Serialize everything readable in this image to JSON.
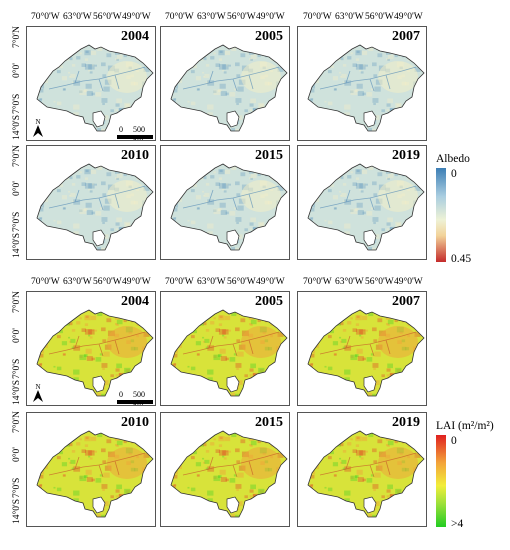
{
  "lon_labels": [
    "70°0'W",
    "63°0'W",
    "56°0'W",
    "49°0'W"
  ],
  "lat_labels": [
    "7°0'N",
    "0°0'",
    "7°0'S",
    "14°0'S"
  ],
  "north_label": "N",
  "scale_bar": {
    "zero": "0",
    "distance": "500 km"
  },
  "albedo": {
    "years": [
      "2004",
      "2005",
      "2007",
      "2010",
      "2015",
      "2019"
    ],
    "legend": {
      "title": "Albedo",
      "min": "0",
      "max": "0.45"
    },
    "colors": {
      "base": "#cfe2dc",
      "low": "#3d7fb5",
      "high": "#c42b2b",
      "bright": "#f6efc6"
    }
  },
  "lai": {
    "years": [
      "2004",
      "2005",
      "2007",
      "2010",
      "2015",
      "2019"
    ],
    "legend": {
      "title": "LAI (m²/m²)",
      "min": "0",
      "max": ">4"
    },
    "colors": {
      "base": "#d8e33a",
      "low": "#e02020",
      "high": "#22cc22",
      "warm": "#f0a23a"
    }
  }
}
